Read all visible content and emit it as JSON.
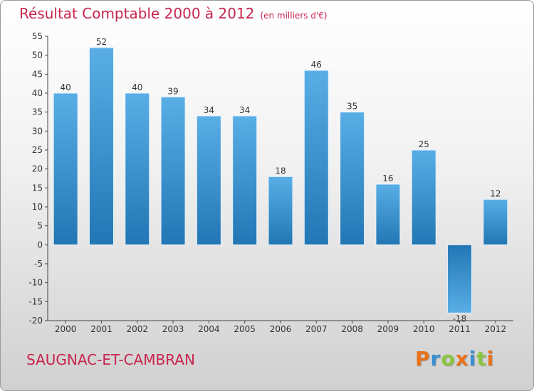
{
  "header": {
    "title": "Résultat Comptable 2000 à 2012",
    "subtitle": "(en milliers d'€)"
  },
  "footer": {
    "city": "SAUGNAC-ET-CAMBRAN",
    "logo": "Proxiti",
    "logo_letters": [
      "P",
      "r",
      "o",
      "x",
      "i",
      "t",
      "i"
    ],
    "logo_colors": [
      "#e8731a",
      "#3a8fd0",
      "#8cc63f",
      "#e8731a",
      "#3a8fd0",
      "#8cc63f",
      "#e8731a"
    ]
  },
  "chart_data": {
    "type": "bar",
    "title": "Résultat Comptable 2000 à 2012",
    "subtitle": "(en milliers d'€)",
    "xlabel": "",
    "ylabel": "",
    "categories": [
      "2000",
      "2001",
      "2002",
      "2003",
      "2004",
      "2005",
      "2006",
      "2007",
      "2008",
      "2009",
      "2010",
      "2011",
      "2012"
    ],
    "values": [
      40,
      52,
      40,
      39,
      34,
      34,
      18,
      46,
      35,
      16,
      25,
      -18,
      12
    ],
    "ylim": [
      -20,
      55
    ],
    "yticks": [
      -20,
      -15,
      -10,
      -5,
      0,
      5,
      10,
      15,
      20,
      25,
      30,
      35,
      40,
      45,
      50,
      55
    ],
    "grid": false,
    "bar_color_light": "#5aaee6",
    "bar_color_dark": "#2276b4",
    "axis_color": "#444444"
  }
}
